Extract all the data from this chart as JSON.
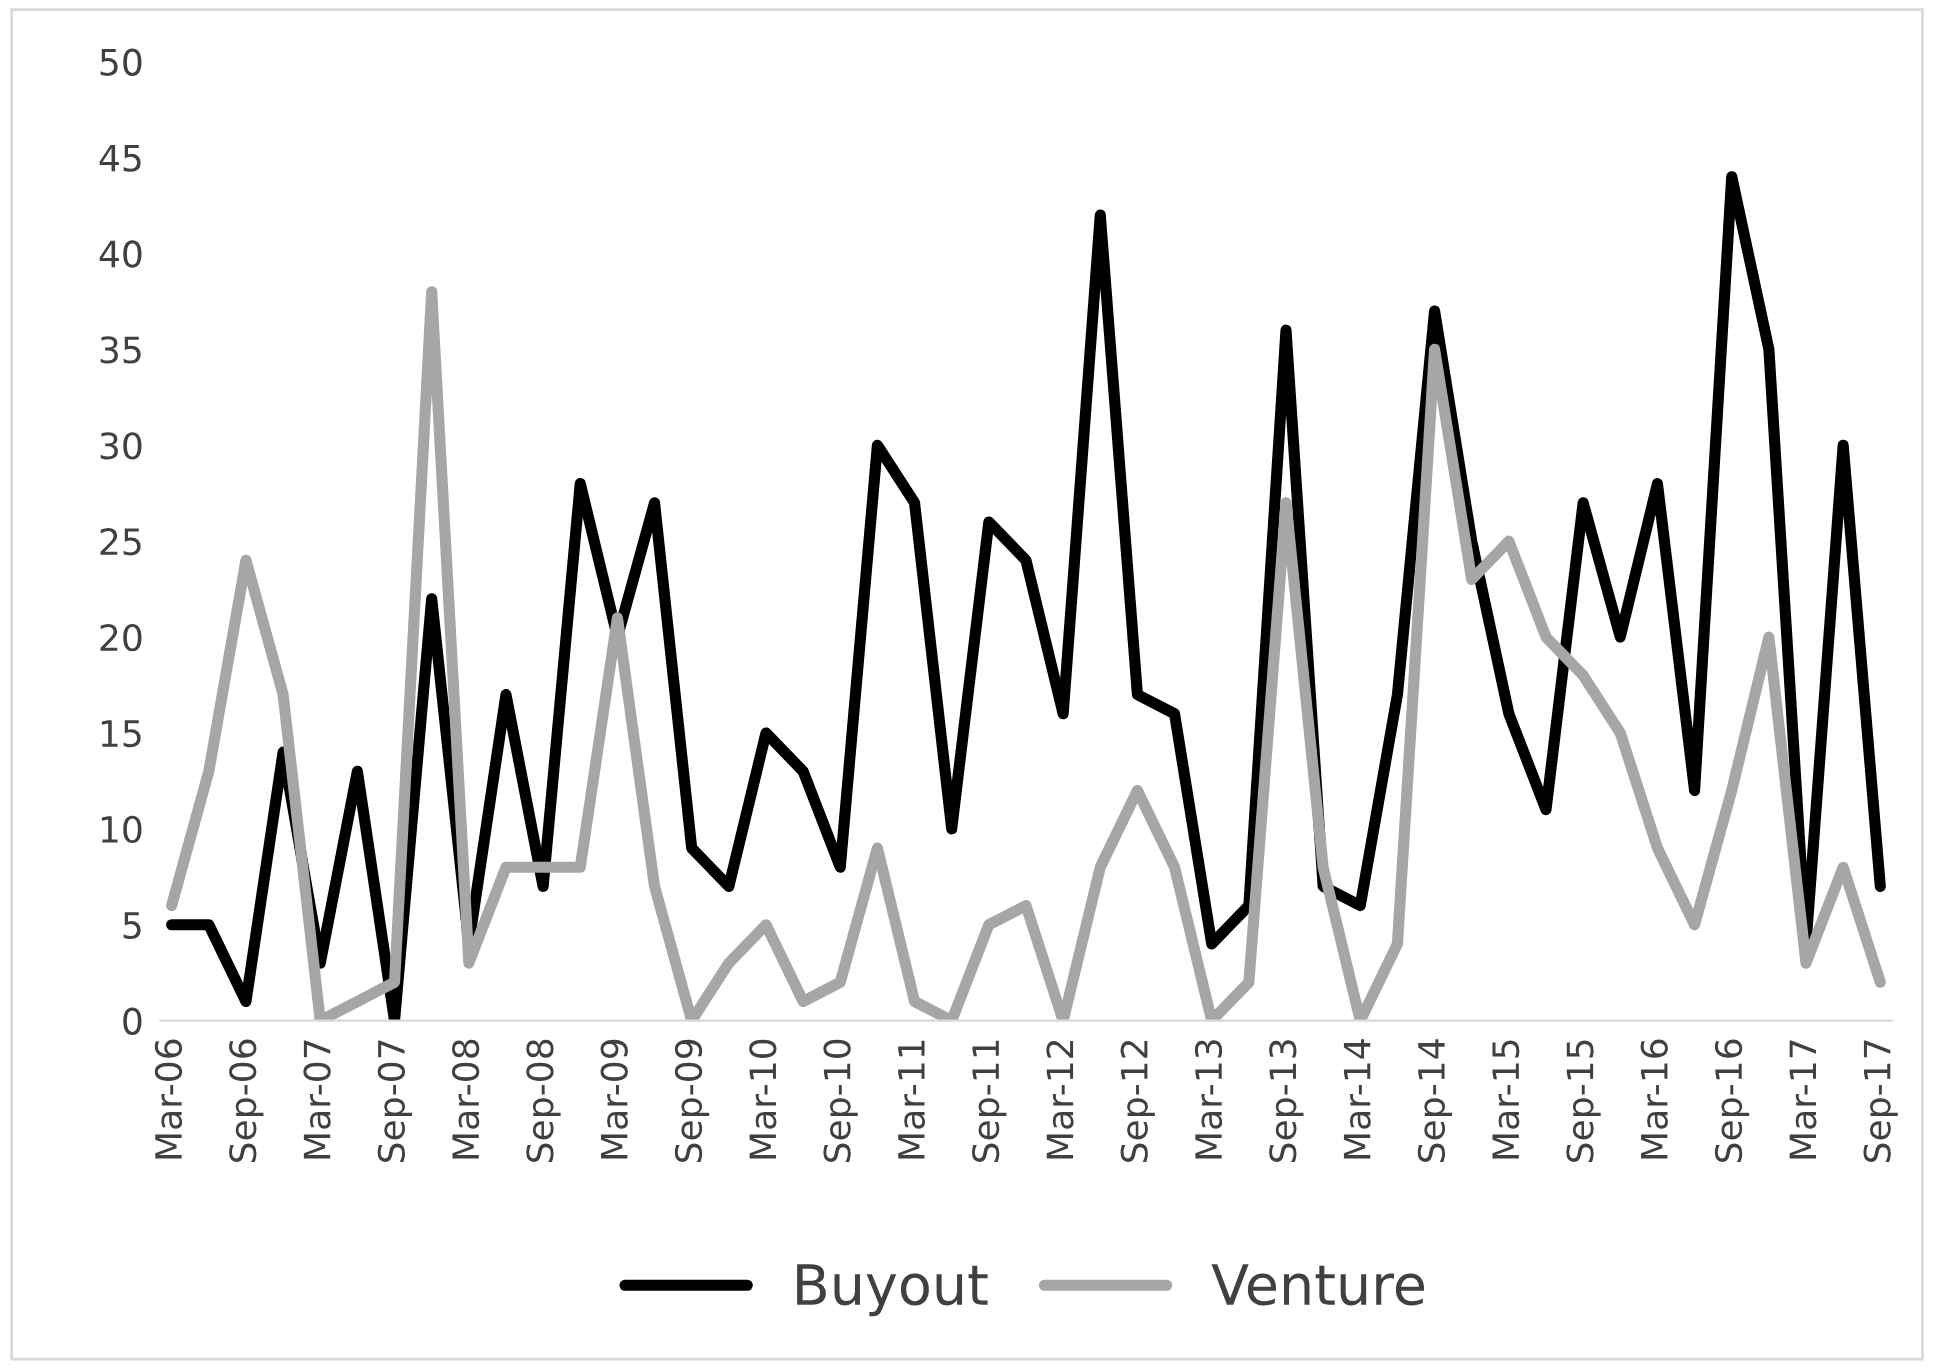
{
  "chart_data": {
    "type": "line",
    "categories": [
      "Mar-06",
      null,
      "Sep-06",
      null,
      "Mar-07",
      null,
      "Sep-07",
      null,
      "Mar-08",
      null,
      "Sep-08",
      null,
      "Mar-09",
      null,
      "Sep-09",
      null,
      "Mar-10",
      null,
      "Sep-10",
      null,
      "Mar-11",
      null,
      "Sep-11",
      null,
      "Mar-12",
      null,
      "Sep-12",
      null,
      "Mar-13",
      null,
      "Sep-13",
      null,
      "Mar-14",
      null,
      "Sep-14",
      null,
      "Mar-15",
      null,
      "Sep-15",
      null,
      "Mar-16",
      null,
      "Sep-16",
      null,
      "Mar-17",
      null,
      "Sep-17"
    ],
    "series": [
      {
        "name": "Buyout",
        "color": "#000000",
        "values": [
          5,
          5,
          1,
          14,
          3,
          13,
          0,
          22,
          4,
          17,
          7,
          28,
          20,
          27,
          9,
          7,
          15,
          13,
          8,
          30,
          27,
          10,
          26,
          24,
          16,
          42,
          17,
          16,
          4,
          6,
          36,
          7,
          6,
          17,
          37,
          25,
          16,
          11,
          27,
          20,
          28,
          12,
          44,
          35,
          4,
          30,
          7
        ]
      },
      {
        "name": "Venture",
        "color": "#a6a6a6",
        "values": [
          6,
          13,
          24,
          17,
          0,
          1,
          2,
          38,
          3,
          8,
          8,
          8,
          21,
          7,
          0,
          3,
          5,
          1,
          2,
          9,
          1,
          0,
          5,
          6,
          0,
          8,
          12,
          8,
          0,
          2,
          27,
          8,
          0,
          4,
          35,
          23,
          25,
          20,
          18,
          15,
          9,
          5,
          12,
          20,
          3,
          8,
          2
        ]
      }
    ],
    "ylim": [
      0,
      50
    ],
    "yticks": [
      0,
      5,
      10,
      15,
      20,
      25,
      30,
      35,
      40,
      45,
      50
    ],
    "grid": false,
    "legend": "bottom",
    "marker": "none",
    "line_style": "solid"
  }
}
